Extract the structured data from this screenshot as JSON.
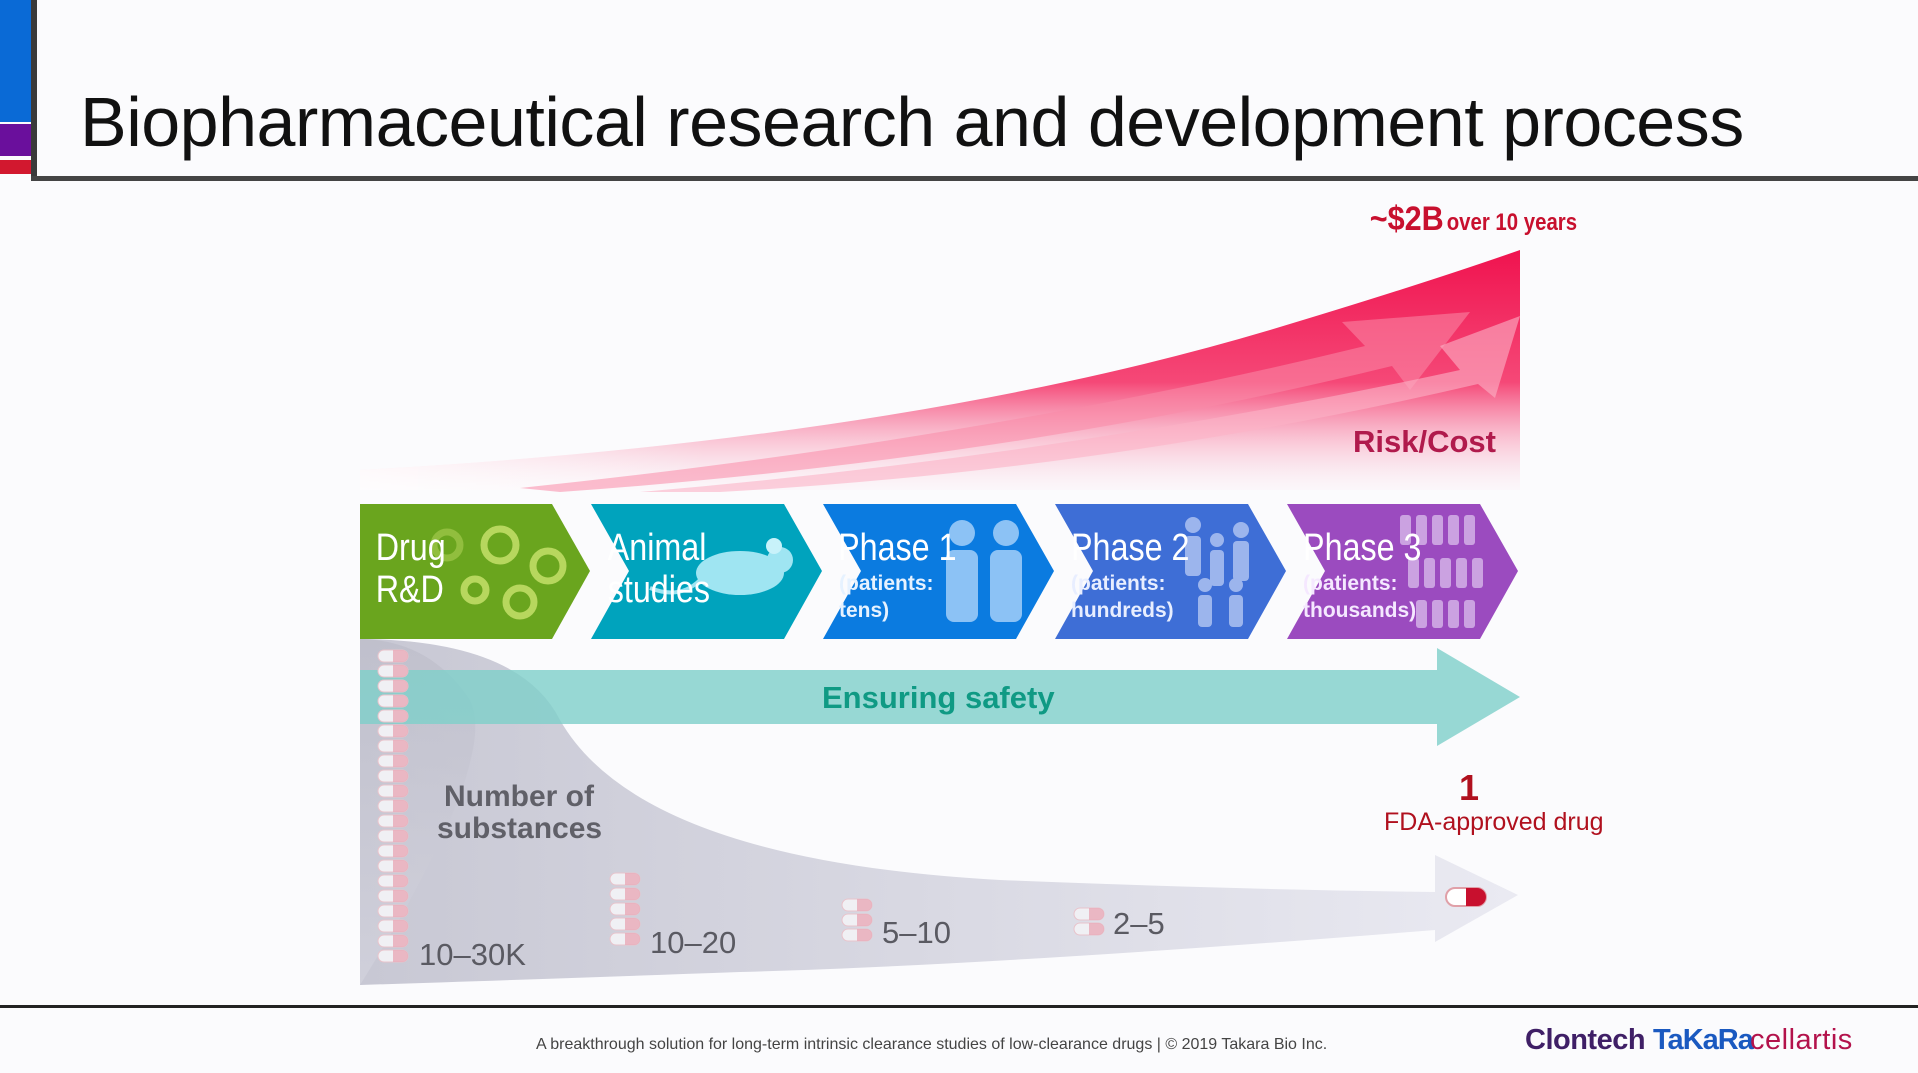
{
  "slide": {
    "title": "Biopharmaceutical research and development process",
    "cost_label": {
      "big": "~$2B",
      "small": "over 10 years"
    },
    "risk_label": "Risk/Cost",
    "stages": [
      {
        "line1": "Drug",
        "line2": "R&D",
        "color": "#6aa51e"
      },
      {
        "line1": "Animal",
        "line2": "studies",
        "color": "#00a3bd"
      },
      {
        "line1": "Phase 1",
        "sub1": "(patients:",
        "sub2": "tens)",
        "color": "#0b7be0"
      },
      {
        "line1": "Phase 2",
        "sub1": "(patients:",
        "sub2": "hundreds)",
        "color": "#3e6ed6"
      },
      {
        "line1": "Phase 3",
        "sub1": "(patients:",
        "sub2": "thousands)",
        "color": "#9b4bbf"
      }
    ],
    "safety_label": "Ensuring safety",
    "substances_label": [
      "Number of",
      "substances"
    ],
    "counts": [
      "10–30K",
      "10–20",
      "5–10",
      "2–5"
    ],
    "approved": {
      "count": "1",
      "label": "FDA-approved drug"
    },
    "footer": "A breakthrough solution for long-term intrinsic clearance studies of low-clearance drugs | © 2019 Takara Bio Inc.",
    "logos": [
      "Clontech",
      "TaKaRa",
      "cellartis"
    ]
  },
  "colors": {
    "accent_blue": "#0a6ad6",
    "accent_purple": "#6a0f9c",
    "accent_red": "#d2182f",
    "risk_red": "#f0134f",
    "safety_teal": "#7ecfc9",
    "safety_text": "#0f9a84",
    "approved_red": "#b0101e"
  }
}
